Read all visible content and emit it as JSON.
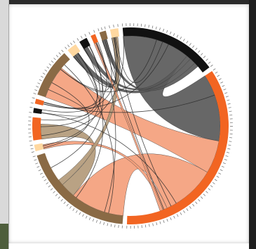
{
  "chart_data": {
    "type": "chord",
    "groups": [
      {
        "color": "#111111",
        "size": 60
      },
      {
        "color": "#f26522",
        "size": 130
      },
      {
        "color": "#8a6a45",
        "size": 70
      },
      {
        "color": "#ffd8a0",
        "size": 4
      },
      {
        "color": "#f26522",
        "size": 14
      },
      {
        "color": "#111111",
        "size": 3
      },
      {
        "color": "#f26522",
        "size": 3
      },
      {
        "color": "#8a6a45",
        "size": 30
      },
      {
        "color": "#ffd8a0",
        "size": 6
      },
      {
        "color": "#111111",
        "size": 5
      },
      {
        "color": "#f26522",
        "size": 3
      },
      {
        "color": "#8a6a45",
        "size": 4
      },
      {
        "color": "#ffd8a0",
        "size": 5
      }
    ],
    "ribbons": [
      {
        "source": 0,
        "target": 1,
        "value": 45,
        "color": "#5a5a5a"
      },
      {
        "source": 1,
        "target": 7,
        "value": 22,
        "color": "#f4a07c"
      },
      {
        "source": 1,
        "target": 2,
        "value": 36,
        "color": "#f4a07c"
      },
      {
        "source": 0,
        "target": 9,
        "value": 3,
        "color": "#5a5a5a"
      },
      {
        "source": 2,
        "target": 4,
        "value": 10,
        "color": "#b39a7a"
      },
      {
        "source": 0,
        "target": 8,
        "value": 4,
        "color": "#5a5a5a"
      },
      {
        "source": 1,
        "target": 3,
        "value": 3,
        "color": "#f4a07c"
      },
      {
        "source": 2,
        "target": 12,
        "value": 4,
        "color": "#b39a7a"
      },
      {
        "source": 1,
        "target": 10,
        "value": 2,
        "color": "#f4a07c"
      },
      {
        "source": 0,
        "target": 11,
        "value": 3,
        "color": "#5a5a5a"
      }
    ],
    "threads": [
      [
        0,
        4
      ],
      [
        0,
        7
      ],
      [
        1,
        5
      ],
      [
        1,
        6
      ],
      [
        2,
        8
      ],
      [
        2,
        9
      ],
      [
        3,
        7
      ],
      [
        4,
        9
      ],
      [
        5,
        12
      ],
      [
        6,
        10
      ],
      [
        7,
        11
      ],
      [
        8,
        12
      ],
      [
        0,
        12
      ],
      [
        1,
        11
      ],
      [
        2,
        10
      ],
      [
        3,
        9
      ],
      [
        4,
        8
      ],
      [
        5,
        7
      ],
      [
        6,
        8
      ],
      [
        9,
        12
      ],
      [
        10,
        11
      ],
      [
        1,
        12
      ],
      [
        2,
        7
      ],
      [
        0,
        6
      ]
    ]
  }
}
